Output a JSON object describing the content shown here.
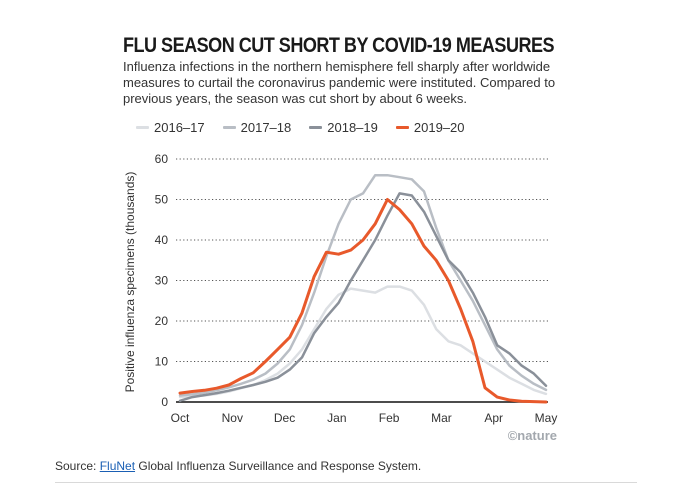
{
  "chart_data": {
    "type": "line",
    "title": "FLU SEASON CUT SHORT BY COVID-19 MEASURES",
    "subtitle": "Influenza infections in the northern hemisphere fell sharply after worldwide measures to curtail the coronavirus pandemic were instituted. Compared to previous years, the season was cut short by about 6 weeks.",
    "ylabel": "Positive influenza specimens (thousands)",
    "xlabel": "",
    "x_ticks": [
      "Oct",
      "Nov",
      "Dec",
      "Jan",
      "Feb",
      "Mar",
      "Apr",
      "May"
    ],
    "y_ticks": [
      "60",
      "50",
      "40",
      "30",
      "20",
      "10",
      "0"
    ],
    "ylim": [
      0,
      60
    ],
    "grid": "horizontal dotted",
    "legend_position": "top-left",
    "x_unit": "week of season",
    "x": [
      0,
      1,
      2,
      3,
      4,
      5,
      6,
      7,
      8,
      9,
      10,
      11,
      12,
      13,
      14,
      15,
      16,
      17,
      18,
      19,
      20,
      21,
      22,
      23,
      24,
      25,
      26,
      27,
      28,
      29,
      30
    ],
    "series": [
      {
        "name": "2016–17",
        "color": "#dcdfe3",
        "width": 2.5,
        "values": [
          1.2,
          1.4,
          1.6,
          2.0,
          2.6,
          3.4,
          4.2,
          5.4,
          7.0,
          9.5,
          13.0,
          18.0,
          23.0,
          26.5,
          28.0,
          27.5,
          27.0,
          28.5,
          28.5,
          27.5,
          24.0,
          18.0,
          15.0,
          14.0,
          12.0,
          10.0,
          8.0,
          6.0,
          4.5,
          3.0,
          2.0
        ]
      },
      {
        "name": "2017–18",
        "color": "#b9bec5",
        "width": 2.5,
        "values": [
          1.6,
          1.9,
          2.3,
          2.9,
          3.6,
          4.5,
          5.5,
          7.0,
          9.5,
          13.0,
          19.0,
          27.0,
          36.0,
          44.0,
          50.0,
          51.5,
          56.0,
          56.0,
          55.5,
          55.0,
          52.0,
          43.0,
          35.0,
          30.0,
          25.0,
          19.0,
          13.0,
          9.0,
          6.5,
          4.5,
          3.0
        ]
      },
      {
        "name": "2018–19",
        "color": "#8a9099",
        "width": 2.5,
        "values": [
          0.3,
          1.2,
          1.7,
          2.2,
          2.8,
          3.5,
          4.2,
          5.0,
          6.0,
          8.0,
          11.0,
          17.0,
          21.0,
          24.5,
          30.0,
          35.0,
          40.0,
          46.0,
          51.5,
          51.0,
          47.0,
          41.0,
          35.0,
          32.0,
          27.0,
          21.0,
          14.0,
          12.0,
          9.0,
          7.0,
          4.0
        ]
      },
      {
        "name": "2019–20",
        "color": "#e8592b",
        "width": 3,
        "values": [
          2.2,
          2.6,
          2.9,
          3.4,
          4.2,
          5.8,
          7.2,
          10.0,
          13.0,
          16.0,
          22.0,
          31.0,
          37.0,
          36.5,
          37.5,
          40.0,
          44.0,
          50.0,
          47.5,
          44.0,
          38.5,
          35.0,
          30.0,
          23.0,
          15.0,
          3.5,
          1.2,
          0.5,
          0.2,
          0.1,
          0.0
        ]
      }
    ]
  },
  "brand": "©nature",
  "source": {
    "prefix": "Source: ",
    "link": "FluNet",
    "suffix": " Global Influenza Surveillance and Response System."
  }
}
